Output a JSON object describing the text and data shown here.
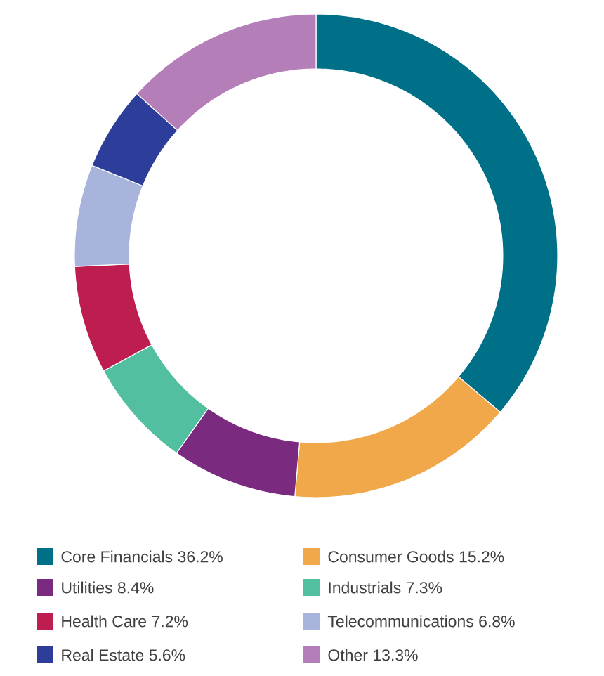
{
  "chart_data": {
    "type": "donut",
    "categories": [
      "Core Financials",
      "Consumer Goods",
      "Utilities",
      "Industrials",
      "Health Care",
      "Telecommunications",
      "Real Estate",
      "Other"
    ],
    "values": [
      36.2,
      15.2,
      8.4,
      7.3,
      7.2,
      6.8,
      5.6,
      13.3
    ],
    "value_labels": [
      "36.2%",
      "15.2%",
      "8.4%",
      "7.3%",
      "7.2%",
      "6.8%",
      "5.6%",
      "13.3%"
    ],
    "colors": [
      "#006f88",
      "#f0a84a",
      "#7a2a7f",
      "#52bfa0",
      "#bd1e4f",
      "#a9b4dc",
      "#2c3e99",
      "#b47fb8"
    ],
    "legend": "bottom"
  }
}
